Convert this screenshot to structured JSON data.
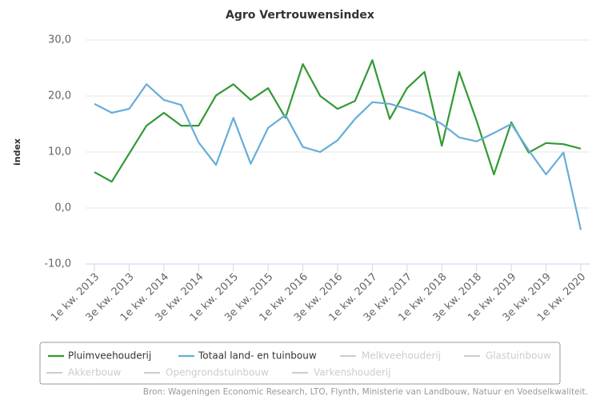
{
  "chart_data": {
    "type": "line",
    "title": "Agro Vertrouwensindex",
    "y_label": "index",
    "source": "Bron: Wageningen Economic Research, LTO, Flynth, Ministerie van Landbouw, Natuur en Voedselkwaliteit.",
    "categories": [
      "1e kw. 2013",
      null,
      "3e kw. 2013",
      null,
      "1e kw. 2014",
      null,
      "3e kw. 2014",
      null,
      "1e kw. 2015",
      null,
      "3e kw. 2015",
      null,
      "1e kw. 2016",
      null,
      "3e kw. 2016",
      null,
      "1e kw. 2017",
      null,
      "3e kw. 2017",
      null,
      "1e kw. 2018",
      null,
      "3e kw. 2018",
      null,
      "1e kw. 2019",
      null,
      "3e kw. 2019",
      null,
      "1e kw. 2020"
    ],
    "series": [
      {
        "name": "Pluimveehouderij",
        "color": "#339933",
        "values": [
          6.4,
          4.7,
          9.7,
          14.7,
          17.0,
          14.7,
          14.7,
          20.1,
          22.1,
          19.3,
          21.4,
          16.1,
          25.7,
          20.0,
          17.7,
          19.1,
          26.4,
          15.9,
          21.4,
          24.3,
          11.1,
          24.3,
          15.6,
          6.0,
          15.3,
          9.9,
          11.6,
          11.4,
          10.6
        ]
      },
      {
        "name": "Totaal land- en tuinbouw",
        "color": "#66add9",
        "values": [
          18.6,
          17.0,
          17.7,
          22.1,
          19.3,
          18.4,
          11.7,
          7.7,
          16.1,
          7.9,
          14.3,
          16.6,
          10.9,
          10.0,
          12.1,
          15.9,
          18.9,
          18.6,
          17.7,
          16.7,
          15.0,
          12.6,
          11.9,
          13.4,
          15.0,
          10.3,
          6.0,
          9.9,
          -3.9
        ]
      }
    ],
    "legend_inactive": [
      "Melkveehouderij",
      "Glastuinbouw",
      "Akkerbouw",
      "Opengrondstuinbouw",
      "Varkenshouderij"
    ],
    "inactive_color": "#cccccc",
    "ylim": [
      -10,
      30
    ],
    "yticks": [
      {
        "value": -10,
        "label": "-10,0"
      },
      {
        "value": 0,
        "label": "0,0"
      },
      {
        "value": 10,
        "label": "10,0"
      },
      {
        "value": 20,
        "label": "20,0"
      },
      {
        "value": 30,
        "label": "30,0"
      }
    ],
    "grid": true
  }
}
